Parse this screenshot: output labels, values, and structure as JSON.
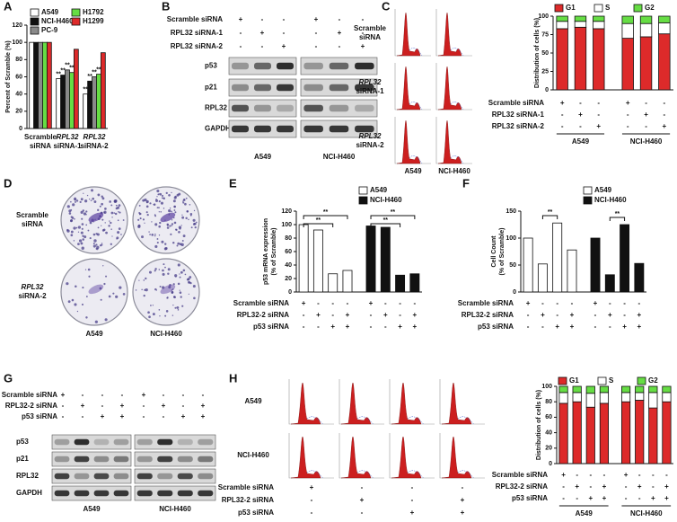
{
  "panel_labels": [
    "A",
    "B",
    "C",
    "D",
    "E",
    "F",
    "G",
    "H"
  ],
  "chart_data": [
    {
      "type": "bar",
      "ylabel": [
        "Percent of Scramble (%)"
      ],
      "categories": [
        [
          "Scramble",
          "siRNA"
        ],
        [
          "RPL32",
          "siRNA-1"
        ],
        [
          "RPL32",
          "siRNA-2"
        ]
      ],
      "series": [
        {
          "name": "A549",
          "color": "#ffffff",
          "values": [
            100,
            58,
            40
          ],
          "significance": [
            null,
            "**",
            "**"
          ]
        },
        {
          "name": "NCI-H460",
          "color": "#111111",
          "values": [
            100,
            62,
            55
          ],
          "significance": [
            null,
            "**",
            "**"
          ]
        },
        {
          "name": "PC-9",
          "color": "#8a8a8a",
          "values": [
            100,
            68,
            60
          ],
          "significance": [
            null,
            "**",
            "**"
          ]
        },
        {
          "name": "H1792",
          "color": "#66dd44",
          "values": [
            100,
            65,
            63
          ],
          "significance": [
            null,
            "**",
            "**"
          ]
        },
        {
          "name": "H1299",
          "color": "#dd2a2a",
          "values": [
            100,
            92,
            88
          ]
        }
      ],
      "ylim": [
        0,
        120
      ],
      "yticks": [
        0,
        20,
        40,
        60,
        80,
        100,
        120
      ]
    },
    {
      "type": "stacked_bar",
      "ylabel": [
        "Distribution of cells (%)"
      ],
      "series": [
        {
          "name": "G1",
          "color": "#dd2a2a",
          "values": [
            83,
            85,
            83,
            70,
            72,
            76
          ]
        },
        {
          "name": "S",
          "color": "#ffffff",
          "values": [
            10,
            8,
            10,
            20,
            18,
            15
          ]
        },
        {
          "name": "G2",
          "color": "#66dd44",
          "values": [
            7,
            7,
            7,
            10,
            10,
            9
          ]
        }
      ],
      "ylim": [
        0,
        100
      ],
      "yticks": [
        0,
        25,
        50,
        75,
        100
      ],
      "conditions": [
        {
          "label": "Scramble siRNA",
          "signs": [
            "+",
            "-",
            "-",
            "+",
            "-",
            "-"
          ]
        },
        {
          "label": "RPL32 siRNA-1",
          "signs": [
            "-",
            "+",
            "-",
            "-",
            "+",
            "-"
          ]
        },
        {
          "label": "RPL32 siRNA-2",
          "signs": [
            "-",
            "-",
            "+",
            "-",
            "-",
            "+"
          ]
        }
      ],
      "groups": [
        "A549",
        "NCI-H460"
      ]
    },
    {
      "type": "bar",
      "ylabel": [
        "p53 mRNA expression",
        "(% of Scramble)"
      ],
      "series": [
        {
          "name": "A549",
          "color": "#ffffff",
          "values": [
            100,
            92,
            27,
            32
          ]
        },
        {
          "name": "NCI-H460",
          "color": "#111111",
          "values": [
            98,
            96,
            25,
            27
          ]
        }
      ],
      "ylim": [
        0,
        120
      ],
      "yticks": [
        0,
        20,
        40,
        60,
        80,
        100,
        120
      ],
      "conditions": [
        {
          "label": "Scramble siRNA",
          "signs": [
            "+",
            "-",
            "-",
            "-",
            "+",
            "-",
            "-",
            "-"
          ]
        },
        {
          "label": "RPL32-2 siRNA",
          "signs": [
            "-",
            "+",
            "-",
            "+",
            "-",
            "+",
            "-",
            "+"
          ]
        },
        {
          "label": "p53 siRNA",
          "signs": [
            "-",
            "-",
            "+",
            "+",
            "-",
            "-",
            "+",
            "+"
          ]
        }
      ],
      "annotations": [
        "**",
        "**",
        "**",
        "**"
      ]
    },
    {
      "type": "bar",
      "ylabel": [
        "Cell Count",
        "(% of Scramble)"
      ],
      "series": [
        {
          "name": "A549",
          "color": "#ffffff",
          "values": [
            100,
            52,
            128,
            78
          ]
        },
        {
          "name": "NCI-H460",
          "color": "#111111",
          "values": [
            100,
            32,
            125,
            53
          ]
        }
      ],
      "ylim": [
        0,
        150
      ],
      "yticks": [
        0,
        50,
        100,
        150
      ],
      "conditions": [
        {
          "label": "Scramble siRNA",
          "signs": [
            "+",
            "-",
            "-",
            "-",
            "+",
            "-",
            "-",
            "-"
          ]
        },
        {
          "label": "RPL32-2 siRNA",
          "signs": [
            "-",
            "+",
            "-",
            "+",
            "-",
            "+",
            "-",
            "+"
          ]
        },
        {
          "label": "p53 siRNA",
          "signs": [
            "-",
            "-",
            "+",
            "+",
            "-",
            "-",
            "+",
            "+"
          ]
        }
      ],
      "annotations": [
        "**",
        "**"
      ]
    },
    {
      "type": "stacked_bar",
      "ylabel": [
        "Distribution of cells (%)"
      ],
      "series": [
        {
          "name": "G1",
          "color": "#dd2a2a",
          "values": [
            78,
            80,
            73,
            78,
            80,
            82,
            72,
            80
          ]
        },
        {
          "name": "S",
          "color": "#ffffff",
          "values": [
            14,
            12,
            18,
            14,
            12,
            10,
            20,
            12
          ]
        },
        {
          "name": "G2",
          "color": "#66dd44",
          "values": [
            8,
            8,
            9,
            8,
            8,
            8,
            8,
            8
          ]
        }
      ],
      "ylim": [
        0,
        100
      ],
      "yticks": [
        0,
        20,
        40,
        60,
        80,
        100
      ],
      "conditions": [
        {
          "label": "Scramble siRNA",
          "signs": [
            "+",
            "-",
            "-",
            "-",
            "+",
            "-",
            "-",
            "-"
          ]
        },
        {
          "label": "RPL32-2 siRNA",
          "signs": [
            "-",
            "+",
            "-",
            "+",
            "-",
            "+",
            "-",
            "+"
          ]
        },
        {
          "label": "p53 siRNA",
          "signs": [
            "-",
            "-",
            "+",
            "+",
            "-",
            "-",
            "+",
            "+"
          ]
        }
      ],
      "groups": [
        "A549",
        "NCI-H460"
      ]
    }
  ],
  "blot_b": {
    "conditions": [
      {
        "label": "Scramble siRNA",
        "signs": [
          "+",
          "-",
          "-",
          "+",
          "-",
          "-"
        ]
      },
      {
        "label": "RPL32 siRNA-1",
        "signs": [
          "-",
          "+",
          "-",
          "-",
          "+",
          "-"
        ]
      },
      {
        "label": "RPL32 siRNA-2",
        "signs": [
          "-",
          "-",
          "+",
          "-",
          "-",
          "+"
        ]
      }
    ],
    "rows": [
      "p53",
      "p21",
      "RPL32",
      "GAPDH"
    ],
    "cell_lines": [
      "A549",
      "NCI-H460"
    ]
  },
  "flow_c": {
    "rows": [
      [
        "Scramble",
        "siRNA"
      ],
      [
        "RPL32",
        "siRNA-1"
      ],
      [
        "RPL32",
        "siRNA-2"
      ]
    ],
    "cell_lines": [
      "A549",
      "NCI-H460"
    ]
  },
  "colony_d": {
    "rows": [
      [
        "Scramble",
        "siRNA"
      ],
      [
        "RPL32",
        "siRNA-2"
      ]
    ],
    "cell_lines": [
      "A549",
      "NCI-H460"
    ]
  },
  "blot_g": {
    "conditions": [
      {
        "label": "Scramble siRNA",
        "signs": [
          "+",
          "-",
          "-",
          "-",
          "+",
          "-",
          "-",
          "-"
        ]
      },
      {
        "label": "RPL32-2 siRNA",
        "signs": [
          "-",
          "+",
          "-",
          "+",
          "-",
          "+",
          "-",
          "+"
        ]
      },
      {
        "label": "p53 siRNA",
        "signs": [
          "-",
          "-",
          "+",
          "+",
          "-",
          "-",
          "+",
          "+"
        ]
      }
    ],
    "rows": [
      "p53",
      "p21",
      "RPL32",
      "GAPDH"
    ],
    "cell_lines": [
      "A549",
      "NCI-H460"
    ]
  },
  "flow_h": {
    "rows": [
      "A549",
      "NCI-H460"
    ],
    "conditions": [
      {
        "label": "Scramble siRNA",
        "signs": [
          "+",
          "-",
          "-",
          "-"
        ]
      },
      {
        "label": "RPL32-2 siRNA",
        "signs": [
          "-",
          "+",
          "-",
          "+"
        ]
      },
      {
        "label": "p53 siRNA",
        "signs": [
          "-",
          "-",
          "+",
          "+"
        ]
      }
    ]
  }
}
